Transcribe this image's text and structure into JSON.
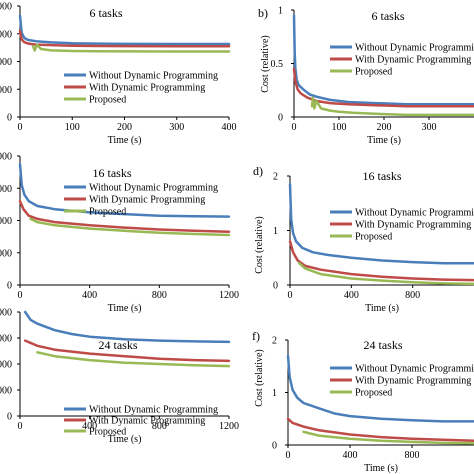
{
  "chart_data": [
    {
      "type": "line",
      "panel_label": "",
      "title": "6 tasks",
      "xlabel": "Time (s)",
      "ylabel": "",
      "xlim": [
        0,
        400
      ],
      "xticks": [
        0,
        100,
        200,
        300,
        400
      ],
      "ylim": [
        0,
        4000
      ],
      "yticks": [
        0,
        1000,
        2000,
        3000,
        4000
      ],
      "ytick_labels": [
        "0",
        "000",
        "000",
        "000",
        "000"
      ],
      "grid": false,
      "legend_position": "middle-right",
      "series": [
        {
          "name": "Without Dynamic Programming",
          "color": "#4a7ebb",
          "x": [
            0,
            3,
            8,
            15,
            30,
            60,
            100,
            150,
            200,
            300,
            400
          ],
          "y": [
            3650,
            3050,
            2850,
            2780,
            2730,
            2690,
            2660,
            2645,
            2635,
            2630,
            2630
          ]
        },
        {
          "name": "With Dynamic Programming",
          "color": "#be4b48",
          "x": [
            0,
            3,
            8,
            15,
            30,
            60,
            100,
            150,
            200,
            300,
            400
          ],
          "y": [
            3100,
            2800,
            2700,
            2650,
            2610,
            2590,
            2570,
            2560,
            2555,
            2550,
            2550
          ]
        },
        {
          "name": "Proposed",
          "color": "#98b954",
          "x": [
            25,
            28,
            33,
            40,
            60,
            100,
            150,
            200,
            300,
            400
          ],
          "y": [
            2550,
            2400,
            2600,
            2450,
            2400,
            2380,
            2370,
            2365,
            2360,
            2360
          ]
        }
      ]
    },
    {
      "type": "line",
      "panel_label": "b)",
      "title": "6 tasks",
      "xlabel": "Time (s)",
      "ylabel": "Cost (relative)",
      "xlim": [
        0,
        400
      ],
      "xticks": [
        0,
        100,
        200,
        300
      ],
      "ylim": [
        0,
        1
      ],
      "yticks": [
        0,
        0.5,
        1
      ],
      "ytick_labels": [
        "0",
        "0.5",
        "1"
      ],
      "grid": false,
      "legend_position": "top-right",
      "series": [
        {
          "name": "Without Dynamic Programming",
          "color": "#4a7ebb",
          "x": [
            0,
            1.5,
            3,
            6,
            10,
            20,
            35,
            50,
            80,
            120,
            180,
            250,
            350,
            400
          ],
          "y": [
            0.95,
            0.6,
            0.45,
            0.35,
            0.3,
            0.26,
            0.21,
            0.19,
            0.16,
            0.14,
            0.13,
            0.12,
            0.12,
            0.12
          ]
        },
        {
          "name": "With Dynamic Programming",
          "color": "#be4b48",
          "x": [
            0,
            3,
            8,
            15,
            30,
            50,
            80,
            120,
            180,
            250,
            350,
            400
          ],
          "y": [
            0.45,
            0.33,
            0.26,
            0.22,
            0.18,
            0.15,
            0.13,
            0.12,
            0.11,
            0.1,
            0.1,
            0.1
          ]
        },
        {
          "name": "Proposed",
          "color": "#98b954",
          "x": [
            40,
            42,
            45,
            50,
            60,
            80,
            100,
            130,
            180,
            250,
            350,
            400
          ],
          "y": [
            0.1,
            0.18,
            0.08,
            0.15,
            0.08,
            0.06,
            0.05,
            0.04,
            0.03,
            0.02,
            0.02,
            0.02
          ]
        }
      ]
    },
    {
      "type": "line",
      "panel_label": "",
      "title": "16 tasks",
      "xlabel": "Time (s)",
      "ylabel": "",
      "xlim": [
        0,
        1200
      ],
      "xticks": [
        0,
        400,
        800,
        1200
      ],
      "ylim": [
        0,
        4000
      ],
      "yticks": [
        0,
        1000,
        2000,
        3000,
        4000
      ],
      "ytick_labels": [
        "0",
        "000",
        "000",
        "000",
        "000"
      ],
      "grid": false,
      "legend_position": "top-right",
      "series": [
        {
          "name": "Without Dynamic Programming",
          "color": "#4a7ebb",
          "x": [
            0,
            10,
            25,
            50,
            100,
            200,
            400,
            600,
            800,
            1000,
            1200
          ],
          "y": [
            3750,
            3100,
            2800,
            2600,
            2450,
            2350,
            2250,
            2200,
            2150,
            2130,
            2120
          ]
        },
        {
          "name": "With Dynamic Programming",
          "color": "#be4b48",
          "x": [
            0,
            20,
            50,
            100,
            200,
            400,
            600,
            800,
            1000,
            1200
          ],
          "y": [
            2600,
            2350,
            2150,
            2050,
            1950,
            1850,
            1780,
            1720,
            1680,
            1650
          ]
        },
        {
          "name": "Proposed",
          "color": "#98b954",
          "x": [
            60,
            100,
            200,
            400,
            600,
            800,
            1000,
            1200
          ],
          "y": [
            2050,
            1950,
            1850,
            1750,
            1680,
            1620,
            1580,
            1550
          ]
        }
      ]
    },
    {
      "type": "line",
      "panel_label": "d)",
      "title": "16 tasks",
      "xlabel": "Time (s)",
      "ylabel": "Cost (relative)",
      "xlim": [
        0,
        1200
      ],
      "xticks": [
        0,
        400,
        800
      ],
      "ylim": [
        0,
        2
      ],
      "yticks": [
        0,
        1,
        2
      ],
      "ytick_labels": [
        "0",
        "1",
        "2"
      ],
      "grid": false,
      "legend_position": "top-right",
      "series": [
        {
          "name": "Without Dynamic Programming",
          "color": "#4a7ebb",
          "x": [
            0,
            8,
            20,
            40,
            80,
            150,
            250,
            400,
            600,
            800,
            1000,
            1200
          ],
          "y": [
            1.85,
            1.2,
            0.95,
            0.8,
            0.68,
            0.6,
            0.55,
            0.5,
            0.45,
            0.42,
            0.4,
            0.4
          ]
        },
        {
          "name": "With Dynamic Programming",
          "color": "#be4b48",
          "x": [
            0,
            20,
            50,
            100,
            200,
            400,
            600,
            800,
            1000,
            1200
          ],
          "y": [
            0.8,
            0.6,
            0.45,
            0.35,
            0.28,
            0.2,
            0.15,
            0.12,
            0.1,
            0.09
          ]
        },
        {
          "name": "Proposed",
          "color": "#98b954",
          "x": [
            60,
            100,
            200,
            400,
            600,
            800,
            1000,
            1200
          ],
          "y": [
            0.4,
            0.3,
            0.2,
            0.12,
            0.08,
            0.05,
            0.03,
            0.02
          ]
        }
      ]
    },
    {
      "type": "line",
      "panel_label": "",
      "title": "24 tasks",
      "xlabel": "Time (s)",
      "ylabel": "",
      "xlim": [
        0,
        1200
      ],
      "xticks": [
        0,
        400,
        800,
        1200
      ],
      "ylim": [
        0,
        4000
      ],
      "yticks": [
        0,
        1000,
        2000,
        3000,
        4000
      ],
      "ytick_labels": [
        "0",
        "000",
        "000",
        "000",
        "000"
      ],
      "grid": false,
      "legend_position": "bottom-center",
      "series": [
        {
          "name": "Without Dynamic Programming",
          "color": "#4a7ebb",
          "x": [
            30,
            60,
            100,
            200,
            300,
            400,
            600,
            800,
            1000,
            1200
          ],
          "y": [
            4000,
            3700,
            3550,
            3300,
            3150,
            3050,
            2950,
            2900,
            2870,
            2850
          ]
        },
        {
          "name": "With Dynamic Programming",
          "color": "#be4b48",
          "x": [
            30,
            100,
            200,
            400,
            600,
            800,
            1000,
            1200
          ],
          "y": [
            2900,
            2700,
            2550,
            2400,
            2300,
            2200,
            2150,
            2120
          ]
        },
        {
          "name": "Proposed",
          "color": "#98b954",
          "x": [
            100,
            200,
            400,
            600,
            800,
            1000,
            1200
          ],
          "y": [
            2450,
            2300,
            2150,
            2050,
            2000,
            1950,
            1920
          ]
        }
      ]
    },
    {
      "type": "line",
      "panel_label": "f)",
      "title": "24 tasks",
      "xlabel": "Time (s)",
      "ylabel": "Cost (relative)",
      "xlim": [
        0,
        1200
      ],
      "xticks": [
        0,
        400,
        800
      ],
      "ylim": [
        0,
        2
      ],
      "yticks": [
        0,
        1,
        2
      ],
      "ytick_labels": [
        "0",
        "1",
        "2"
      ],
      "grid": false,
      "legend_position": "top-right",
      "series": [
        {
          "name": "Without Dynamic Programming",
          "color": "#4a7ebb",
          "x": [
            0,
            10,
            30,
            60,
            100,
            200,
            300,
            400,
            600,
            800,
            1000,
            1200
          ],
          "y": [
            1.7,
            1.3,
            1.05,
            0.9,
            0.8,
            0.7,
            0.6,
            0.55,
            0.5,
            0.47,
            0.45,
            0.45
          ]
        },
        {
          "name": "With Dynamic Programming",
          "color": "#be4b48",
          "x": [
            0,
            30,
            100,
            200,
            400,
            600,
            800,
            1000,
            1200
          ],
          "y": [
            0.5,
            0.42,
            0.35,
            0.28,
            0.2,
            0.15,
            0.12,
            0.1,
            0.08
          ]
        },
        {
          "name": "Proposed",
          "color": "#98b954",
          "x": [
            100,
            200,
            400,
            600,
            800,
            1000,
            1200
          ],
          "y": [
            0.25,
            0.18,
            0.12,
            0.08,
            0.06,
            0.04,
            0.03
          ]
        }
      ]
    }
  ]
}
